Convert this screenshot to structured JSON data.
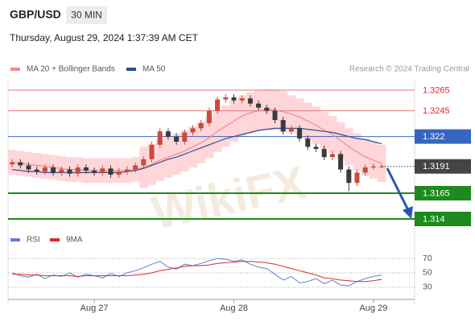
{
  "chart_data": [
    {
      "type": "candlestick",
      "title": "GBP/USD",
      "timeframe": "30 MIN",
      "subtitle": "Thursday, August 29, 2024 1:37:39 AM CET",
      "source": "Research © 2024 Trading Central",
      "watermark": "WikiFX",
      "categories": [
        null,
        null,
        null,
        null,
        null,
        null,
        null,
        null,
        null,
        null,
        "Aug 27",
        null,
        null,
        null,
        null,
        null,
        null,
        null,
        null,
        null,
        null,
        null,
        null,
        null,
        null,
        null,
        null,
        "Aug 28",
        null,
        null,
        null,
        null,
        null,
        null,
        null,
        null,
        null,
        null,
        null,
        null,
        null,
        null,
        null,
        null,
        "Aug 29",
        null
      ],
      "open": [
        1.3193,
        1.3195,
        1.3192,
        1.3188,
        1.3186,
        1.319,
        1.3185,
        1.3188,
        1.3184,
        1.319,
        1.3187,
        1.3185,
        1.3189,
        1.3183,
        1.3186,
        1.3188,
        1.3192,
        1.3198,
        1.3212,
        1.3225,
        1.322,
        1.3215,
        1.3224,
        1.3228,
        1.3233,
        1.3245,
        1.3256,
        1.3258,
        1.3255,
        1.3257,
        1.3252,
        1.3248,
        1.3245,
        1.3236,
        1.3225,
        1.3228,
        1.3218,
        1.321,
        1.3208,
        1.32,
        1.3203,
        1.3188,
        1.3175,
        1.3185,
        1.319,
        1.3191
      ],
      "high": [
        1.3198,
        1.3198,
        1.3195,
        1.3191,
        1.3193,
        1.3193,
        1.3191,
        1.3191,
        1.3193,
        1.3193,
        1.319,
        1.3192,
        1.3192,
        1.3189,
        1.3191,
        1.3195,
        1.3201,
        1.3215,
        1.3228,
        1.3228,
        1.3223,
        1.3227,
        1.3231,
        1.3236,
        1.3248,
        1.3259,
        1.3261,
        1.3261,
        1.326,
        1.326,
        1.3255,
        1.3251,
        1.3248,
        1.3239,
        1.3231,
        1.3231,
        1.3221,
        1.3213,
        1.3211,
        1.3206,
        1.3206,
        1.3191,
        1.3188,
        1.3193,
        1.3194,
        1.3193
      ],
      "low": [
        1.319,
        1.3189,
        1.3185,
        1.3183,
        1.3183,
        1.3182,
        1.3182,
        1.3181,
        1.3181,
        1.3184,
        1.3182,
        1.3182,
        1.318,
        1.318,
        1.3183,
        1.3185,
        1.3189,
        1.3195,
        1.3209,
        1.3217,
        1.3212,
        1.3212,
        1.3221,
        1.3225,
        1.323,
        1.3242,
        1.3253,
        1.3252,
        1.3252,
        1.3249,
        1.3245,
        1.3242,
        1.3233,
        1.3222,
        1.3222,
        1.3215,
        1.3207,
        1.3205,
        1.3197,
        1.3197,
        1.3185,
        1.3167,
        1.3172,
        1.3182,
        1.3188,
        1.3189
      ],
      "close": [
        1.3195,
        1.3192,
        1.3188,
        1.3186,
        1.319,
        1.3185,
        1.3188,
        1.3184,
        1.319,
        1.3187,
        1.3185,
        1.3189,
        1.3183,
        1.3186,
        1.3188,
        1.3192,
        1.3198,
        1.3212,
        1.3225,
        1.322,
        1.3215,
        1.3224,
        1.3228,
        1.3233,
        1.3245,
        1.3256,
        1.3258,
        1.3255,
        1.3257,
        1.3252,
        1.3248,
        1.3245,
        1.3236,
        1.3225,
        1.3228,
        1.3218,
        1.321,
        1.3208,
        1.32,
        1.3203,
        1.3188,
        1.3175,
        1.3185,
        1.319,
        1.3191,
        1.3191
      ],
      "up_color": "#c94a3f",
      "down_color": "#3b3b3b",
      "series": [
        {
          "name": "MA 20 + Bollinger Bands",
          "color": "#f08a8a",
          "band_color": "#ffc8cc",
          "values": [
            1.3195,
            1.3194,
            1.3193,
            1.3192,
            1.3191,
            1.319,
            1.3189,
            1.3188,
            1.3188,
            1.3187,
            1.3187,
            1.3187,
            1.3187,
            1.3187,
            1.3187,
            1.3188,
            1.319,
            1.3193,
            1.3197,
            1.32,
            1.3203,
            1.3206,
            1.321,
            1.3214,
            1.3219,
            1.3225,
            1.323,
            1.3235,
            1.324,
            1.3243,
            1.3245,
            1.3246,
            1.3246,
            1.3244,
            1.3242,
            1.3239,
            1.3235,
            1.3231,
            1.3226,
            1.3222,
            1.3216,
            1.321,
            1.3205,
            1.32,
            1.3197,
            1.3194
          ],
          "upper": [
            1.3207,
            1.3206,
            1.3205,
            1.3204,
            1.3203,
            1.3202,
            1.3201,
            1.32,
            1.32,
            1.3199,
            1.3199,
            1.3199,
            1.3199,
            1.3199,
            1.3199,
            1.32,
            1.321,
            1.3213,
            1.3217,
            1.322,
            1.3223,
            1.3226,
            1.323,
            1.3234,
            1.3239,
            1.3245,
            1.325,
            1.3255,
            1.326,
            1.3263,
            1.3265,
            1.3266,
            1.3266,
            1.3264,
            1.326,
            1.3257,
            1.3253,
            1.3249,
            1.3244,
            1.324,
            1.3234,
            1.3228,
            1.3223,
            1.3218,
            1.3215,
            1.3212
          ],
          "lower": [
            1.3183,
            1.3182,
            1.3181,
            1.318,
            1.3179,
            1.3178,
            1.3177,
            1.3176,
            1.3176,
            1.3175,
            1.3175,
            1.3175,
            1.3175,
            1.3175,
            1.3175,
            1.3176,
            1.317,
            1.3173,
            1.3177,
            1.318,
            1.3183,
            1.3186,
            1.319,
            1.3194,
            1.3199,
            1.3205,
            1.321,
            1.3215,
            1.322,
            1.3223,
            1.3225,
            1.3226,
            1.3226,
            1.3224,
            1.3224,
            1.3221,
            1.3217,
            1.3213,
            1.3208,
            1.3204,
            1.3198,
            1.3192,
            1.3187,
            1.3182,
            1.3179,
            1.3176
          ]
        },
        {
          "name": "MA 50",
          "color": "#2d4f8e",
          "values": [
            1.3188,
            1.3187,
            1.3186,
            1.3186,
            1.3185,
            1.3185,
            1.3185,
            1.3185,
            1.3185,
            1.3185,
            1.3185,
            1.3185,
            1.3185,
            1.3185,
            1.3186,
            1.3187,
            1.3189,
            1.3192,
            1.3195,
            1.3198,
            1.32,
            1.3203,
            1.3206,
            1.3209,
            1.3212,
            1.3215,
            1.3218,
            1.322,
            1.3222,
            1.3224,
            1.3226,
            1.3227,
            1.3228,
            1.3228,
            1.3228,
            1.3228,
            1.3227,
            1.3226,
            1.3225,
            1.3224,
            1.3222,
            1.322,
            1.3218,
            1.3217,
            1.3215,
            1.3213
          ]
        }
      ],
      "levels": [
        {
          "value": 1.3265,
          "color": "#e07a7a",
          "text_color": "#e02a2a",
          "label_style": "text",
          "line_style": "solid"
        },
        {
          "value": 1.3245,
          "color": "#e07a7a",
          "text_color": "#e02a2a",
          "label_style": "text",
          "line_style": "solid"
        },
        {
          "value": 1.322,
          "color": "#3566c2",
          "text_color": "#ffffff",
          "label_style": "box",
          "line_style": "solid"
        },
        {
          "value": 1.3191,
          "color": "#444444",
          "text_color": "#ffffff",
          "label_style": "box",
          "line_style": "dotted"
        },
        {
          "value": 1.3165,
          "color": "#1c8a1c",
          "text_color": "#ffffff",
          "label_style": "box",
          "line_style": "thick"
        },
        {
          "value": 1.314,
          "color": "#1c8a1c",
          "text_color": "#ffffff",
          "label_style": "box",
          "line_style": "thick"
        }
      ],
      "ylim": [
        1.313,
        1.3275
      ]
    },
    {
      "type": "line",
      "series": [
        {
          "name": "RSI",
          "color": "#5b7fd6",
          "values": [
            50,
            46,
            44,
            48,
            42,
            47,
            45,
            50,
            44,
            48,
            46,
            43,
            49,
            45,
            50,
            53,
            57,
            62,
            66,
            58,
            55,
            62,
            60,
            63,
            67,
            70,
            69,
            66,
            68,
            62,
            58,
            56,
            48,
            40,
            45,
            36,
            38,
            42,
            35,
            40,
            33,
            32,
            38,
            42,
            45,
            47
          ]
        },
        {
          "name": "9MA",
          "color": "#d92b2b",
          "values": [
            48,
            48,
            47,
            47,
            46,
            46,
            46,
            46,
            45,
            46,
            46,
            46,
            46,
            46,
            46,
            47,
            48,
            50,
            53,
            55,
            57,
            59,
            60,
            60,
            61,
            63,
            64,
            65,
            66,
            66,
            65,
            64,
            62,
            59,
            56,
            53,
            50,
            47,
            43,
            42,
            40,
            39,
            38,
            38,
            39,
            41
          ]
        }
      ],
      "ylim": [
        13,
        88
      ],
      "yticks": [
        30,
        50,
        70
      ],
      "grid": true
    }
  ]
}
